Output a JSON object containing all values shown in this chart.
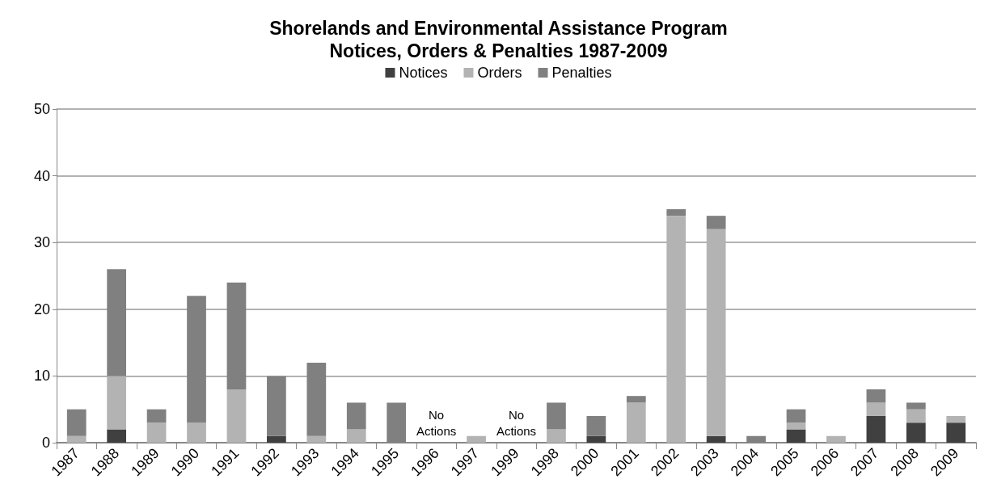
{
  "chart_data": {
    "type": "bar",
    "stacked": true,
    "title": "Shorelands and Environmental Assistance Program\nNotices, Orders & Penalties 1987-2009",
    "categories": [
      "1987",
      "1988",
      "1989",
      "1990",
      "1991",
      "1992",
      "1993",
      "1994",
      "1995",
      "1996",
      "1997",
      "1999",
      "1998",
      "2000",
      "2001",
      "2002",
      "2003",
      "2004",
      "2005",
      "2006",
      "2007",
      "2008",
      "2009"
    ],
    "series": [
      {
        "name": "Notices",
        "color": "#404040",
        "values": [
          0,
          2,
          0,
          0,
          0,
          1,
          0,
          0,
          0,
          0,
          0,
          0,
          0,
          1,
          0,
          0,
          1,
          0,
          2,
          0,
          4,
          3,
          3
        ]
      },
      {
        "name": "Orders",
        "color": "#b3b3b3",
        "values": [
          1,
          8,
          3,
          3,
          8,
          0,
          1,
          2,
          0,
          0,
          1,
          0,
          2,
          0,
          6,
          34,
          31,
          0,
          1,
          1,
          2,
          2,
          1
        ]
      },
      {
        "name": "Penalties",
        "color": "#808080",
        "values": [
          4,
          16,
          2,
          19,
          16,
          9,
          11,
          4,
          6,
          0,
          0,
          0,
          4,
          3,
          1,
          1,
          2,
          1,
          2,
          0,
          2,
          1,
          0
        ]
      }
    ],
    "ylim": [
      0,
      50
    ],
    "yticks": [
      0,
      10,
      20,
      30,
      40,
      50
    ],
    "grid": "y",
    "legend": "top",
    "annotations": [
      "No\nActions",
      "No\nActions"
    ]
  }
}
